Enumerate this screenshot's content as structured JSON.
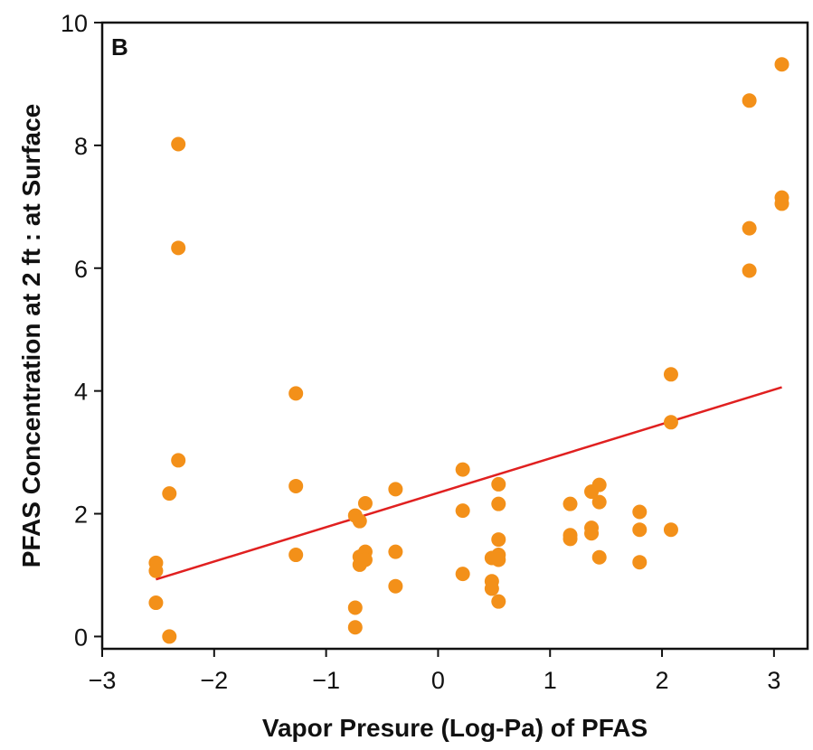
{
  "chart_data": {
    "type": "scatter",
    "panel_label": "B",
    "xlabel": "Vapor Presure (Log-Pa) of PFAS",
    "ylabel": "PFAS Concentration at 2 ft : at Surface",
    "xlim": [
      -3,
      3.3
    ],
    "ylim": [
      -0.2,
      10
    ],
    "x_ticks": [
      -3,
      -2,
      -1,
      0,
      1,
      2,
      3
    ],
    "x_tick_labels": [
      "−3",
      "−2",
      "−1",
      "0",
      "1",
      "2",
      "3"
    ],
    "y_ticks": [
      0,
      2,
      4,
      6,
      8,
      10
    ],
    "y_tick_labels": [
      "0",
      "2",
      "4",
      "6",
      "8",
      "10"
    ],
    "grid": false,
    "marker_color": "#F39019",
    "line_color": "#E02020",
    "series": [
      {
        "kind": "scatter",
        "points": [
          [
            -2.52,
            1.2
          ],
          [
            -2.52,
            1.07
          ],
          [
            -2.52,
            0.55
          ],
          [
            -2.4,
            0.0
          ],
          [
            -2.4,
            2.33
          ],
          [
            -2.32,
            2.87
          ],
          [
            -2.32,
            6.33
          ],
          [
            -2.32,
            8.02
          ],
          [
            -1.27,
            3.96
          ],
          [
            -1.27,
            2.45
          ],
          [
            -1.27,
            1.33
          ],
          [
            -0.74,
            1.97
          ],
          [
            -0.74,
            0.47
          ],
          [
            -0.74,
            0.15
          ],
          [
            -0.7,
            1.88
          ],
          [
            -0.7,
            1.3
          ],
          [
            -0.7,
            1.17
          ],
          [
            -0.65,
            2.17
          ],
          [
            -0.65,
            1.38
          ],
          [
            -0.65,
            1.25
          ],
          [
            -0.38,
            2.4
          ],
          [
            -0.38,
            1.38
          ],
          [
            -0.38,
            0.82
          ],
          [
            0.22,
            2.72
          ],
          [
            0.22,
            2.05
          ],
          [
            0.22,
            1.02
          ],
          [
            0.48,
            1.28
          ],
          [
            0.48,
            0.9
          ],
          [
            0.48,
            0.78
          ],
          [
            0.54,
            2.48
          ],
          [
            0.54,
            2.16
          ],
          [
            0.54,
            1.58
          ],
          [
            0.54,
            1.33
          ],
          [
            0.54,
            1.25
          ],
          [
            0.54,
            0.57
          ],
          [
            1.18,
            2.16
          ],
          [
            1.18,
            1.65
          ],
          [
            1.18,
            1.59
          ],
          [
            1.37,
            2.36
          ],
          [
            1.37,
            1.77
          ],
          [
            1.37,
            1.68
          ],
          [
            1.44,
            2.47
          ],
          [
            1.44,
            2.19
          ],
          [
            1.44,
            1.29
          ],
          [
            1.8,
            2.03
          ],
          [
            1.8,
            1.74
          ],
          [
            1.8,
            1.21
          ],
          [
            2.08,
            4.27
          ],
          [
            2.08,
            3.49
          ],
          [
            2.08,
            1.74
          ],
          [
            2.78,
            8.73
          ],
          [
            2.78,
            6.65
          ],
          [
            2.78,
            5.96
          ],
          [
            3.07,
            9.32
          ],
          [
            3.07,
            7.15
          ],
          [
            3.07,
            7.05
          ]
        ]
      },
      {
        "kind": "line",
        "points": [
          [
            -2.52,
            0.93
          ],
          [
            3.07,
            4.06
          ]
        ]
      }
    ]
  }
}
